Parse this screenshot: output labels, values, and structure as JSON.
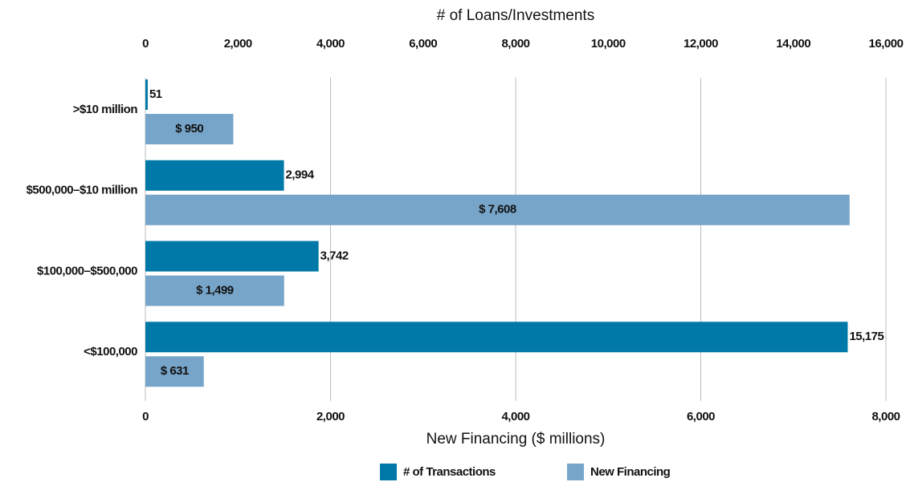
{
  "chart_data": {
    "type": "bar",
    "orientation": "horizontal",
    "xlabel": "New Financing ($ millions)",
    "x2label": "# of Loans/Investments",
    "categories": [
      ">$10 million",
      "$500,000–$10 million",
      "$100,000–$500,000",
      "<$100,000"
    ],
    "series": [
      {
        "name": "# of Transactions",
        "color": "#0079a8",
        "axis": "x2",
        "values": [
          51,
          2994,
          3742,
          15175
        ],
        "value_labels": [
          "51",
          "2,994",
          "3,742",
          "15,175"
        ]
      },
      {
        "name": "New Financing",
        "color": "#77a5c9",
        "values": [
          950,
          7608,
          1499,
          631
        ],
        "value_labels": [
          "$ 950",
          "$ 7,608",
          "$ 1,499",
          "$ 631"
        ]
      }
    ],
    "xlim": [
      0,
      8000
    ],
    "xticks": [
      0,
      {
        "value": 2000,
        "label": "2,000"
      },
      {
        "value": 4000,
        "label": "4,000"
      },
      {
        "value": 6000,
        "label": "6,000"
      },
      {
        "value": 8000,
        "label": "8,000"
      }
    ],
    "x2lim": [
      0,
      16000
    ],
    "x2ticks": [
      0,
      {
        "value": 2000,
        "label": "2,000"
      },
      {
        "value": 4000,
        "label": "4,000"
      },
      {
        "value": 6000,
        "label": "6,000"
      },
      {
        "value": 8000,
        "label": "8,000"
      },
      {
        "value": 10000,
        "label": "10,000"
      },
      {
        "value": 12000,
        "label": "12,000"
      },
      {
        "value": 14000,
        "label": "14,000"
      },
      {
        "value": 16000,
        "label": "16,000"
      }
    ],
    "grid": true,
    "legend": "bottom"
  }
}
